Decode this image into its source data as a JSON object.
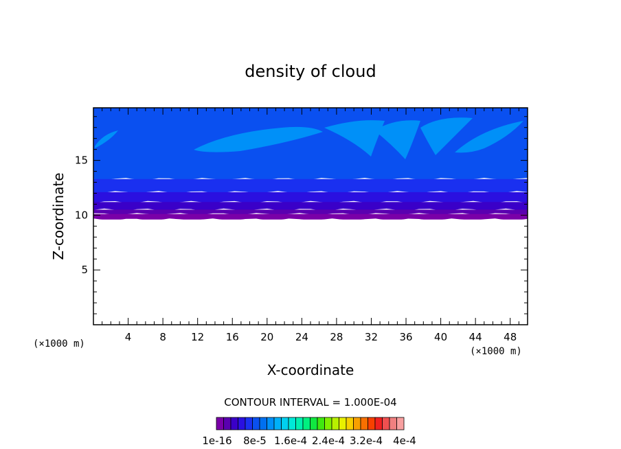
{
  "chart_data": {
    "type": "heatmap",
    "title": "density of cloud",
    "xlabel": "X-coordinate",
    "ylabel": "Z-coordinate",
    "x_unit": "(×1000 m)",
    "y_unit": "(×1000 m)",
    "xlim": [
      0,
      50
    ],
    "ylim": [
      0,
      19.8
    ],
    "x_ticks": [
      4,
      8,
      12,
      16,
      20,
      24,
      28,
      32,
      36,
      40,
      44,
      48
    ],
    "y_ticks": [
      5,
      10,
      15
    ],
    "contour_interval_text": "CONTOUR INTERVAL = 1.000E-04",
    "colorbar": {
      "colors": [
        "#7a00a8",
        "#5a00b0",
        "#3a00c8",
        "#2a10e0",
        "#1a30f0",
        "#0a50f0",
        "#0070f0",
        "#0090f8",
        "#00b0f8",
        "#00d0f0",
        "#00e8d8",
        "#00f0b0",
        "#00f080",
        "#10e840",
        "#40e810",
        "#80f000",
        "#b8f000",
        "#e8f000",
        "#f8d000",
        "#f8a000",
        "#f87000",
        "#f84000",
        "#f02020",
        "#f05050",
        "#f08080",
        "#f8a0a0"
      ],
      "labels": [
        "1e-16",
        "8e-5",
        "1.6e-4",
        "2.4e-4",
        "3.2e-4",
        "4e-4"
      ]
    },
    "field_bands": [
      {
        "z_top": 19.8,
        "color": "#0a50f0"
      },
      {
        "z_top": 13.3,
        "color": "#1a30f0"
      },
      {
        "z_top": 12.1,
        "color": "#2a10e0"
      },
      {
        "z_top": 11.2,
        "color": "#3a00c8"
      },
      {
        "z_top": 10.5,
        "color": "#5a00b0"
      },
      {
        "z_top": 10.1,
        "color": "#7a00a8"
      },
      {
        "z_top": 9.6,
        "color": "#ffffff"
      }
    ],
    "cloud_patches_color": "#0090f8"
  }
}
